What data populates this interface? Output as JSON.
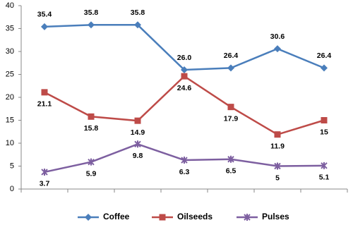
{
  "chart_data": {
    "type": "line",
    "categories": [
      null,
      null,
      null,
      null,
      null,
      null,
      null
    ],
    "series": [
      {
        "name": "Coffee",
        "color": "#4a7ebb",
        "marker": "diamond",
        "values": [
          35.4,
          35.8,
          35.8,
          26.0,
          26.4,
          30.6,
          26.4
        ],
        "value_labels": [
          "35.4",
          "35.8",
          "35.8",
          "26.0",
          "26.4",
          "30.6",
          "26.4"
        ]
      },
      {
        "name": "Oilseeds",
        "color": "#be4b48",
        "marker": "square",
        "values": [
          21.1,
          15.8,
          14.9,
          24.6,
          17.9,
          11.9,
          15
        ]
      },
      {
        "name": "Pulses",
        "color": "#7d5fa0",
        "marker": "star",
        "values": [
          3.7,
          5.9,
          9.8,
          6.3,
          6.5,
          5,
          5.1
        ]
      }
    ],
    "ylim": [
      0,
      40
    ],
    "yticks": [
      0,
      5,
      10,
      15,
      20,
      25,
      30,
      35,
      40
    ],
    "grid": false,
    "legend": "bottom"
  }
}
